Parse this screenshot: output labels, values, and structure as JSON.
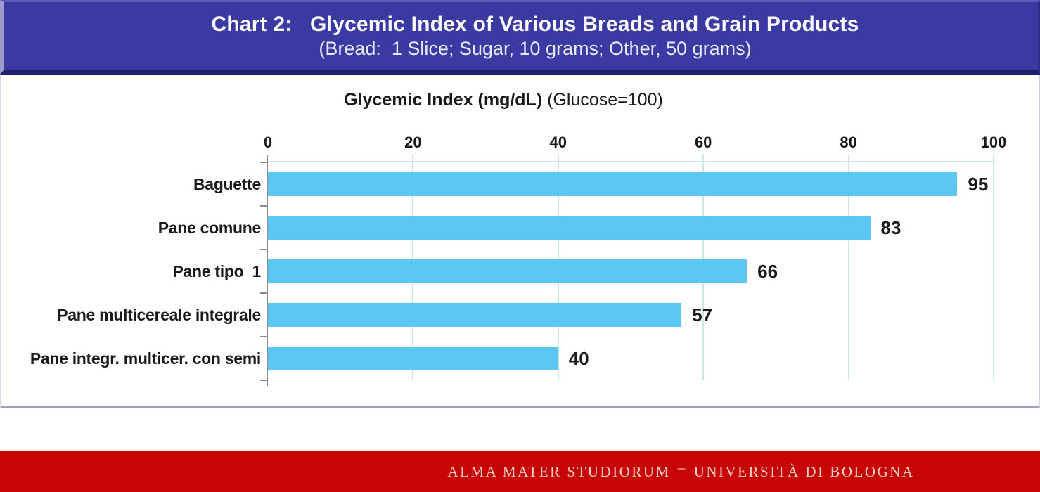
{
  "header": {
    "line1": "Chart 2:   Glycemic Index of Various Breads and Grain Products",
    "line2": "(Bread:  1 Slice; Sugar, 10 grams; Other, 50 grams)"
  },
  "chart_data": {
    "type": "bar",
    "orientation": "horizontal",
    "title": "Glycemic Index (mg/dL) (Glucose=100)",
    "title_bold": "Glycemic Index (mg/dL)",
    "title_suffix": " (Glucose=100)",
    "categories": [
      "Baguette",
      "Pane comune",
      "Pane tipo  1",
      "Pane multicereale integrale",
      "Pane integr. multicer. con semi"
    ],
    "values": [
      95,
      83,
      66,
      57,
      40
    ],
    "x_ticks": [
      0,
      20,
      40,
      60,
      80,
      100
    ],
    "xlim": [
      0,
      100
    ],
    "grid": true,
    "value_labels": true,
    "legend": "none",
    "xlabel": "",
    "ylabel": ""
  },
  "footer": {
    "text_left": "ALMA MATER STUDIORUM",
    "separator": "–",
    "text_right": "UNIVERSITÀ DI BOLOGNA"
  },
  "colors": {
    "header_bg": "#3A3AA2",
    "header_text": "#FAFAFF",
    "bar": "#5BC7F2",
    "grid": "#C9E8EA",
    "axis": "#8C8C8C",
    "label_text": "#1A1A1A",
    "footer_bg": "#C80505",
    "footer_text": "#F2D2CC",
    "panel_border": "#9E9EC4"
  }
}
